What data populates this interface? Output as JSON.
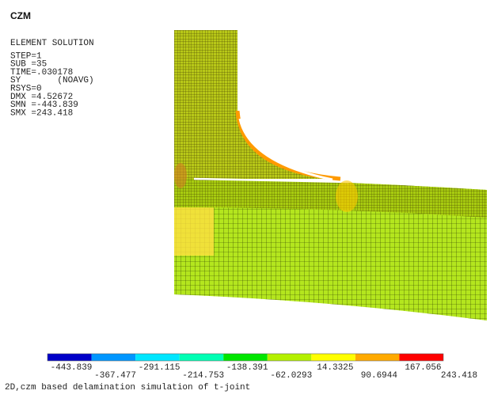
{
  "title": "CZM",
  "info": [
    "ELEMENT SOLUTION",
    "STEP=1",
    "SUB =35",
    "TIME=.030178",
    "SY       (NOAVG)",
    "RSYS=0",
    "DMX =4.52672",
    "SMN =-443.839",
    "SMX =243.418"
  ],
  "legend": {
    "labels": [
      "-443.839",
      "-367.477",
      "-291.115",
      "-214.753",
      "-138.391",
      "-62.0293",
      "14.3325",
      "90.6944",
      "167.056",
      "243.418"
    ],
    "colors": [
      "#0000c8",
      "#0096ff",
      "#00e6ff",
      "#00ffb4",
      "#00e600",
      "#b4f000",
      "#ffff00",
      "#ffaa00",
      "#ff0000"
    ]
  },
  "caption": "2D,czm based delamination simulation of t-joint"
}
